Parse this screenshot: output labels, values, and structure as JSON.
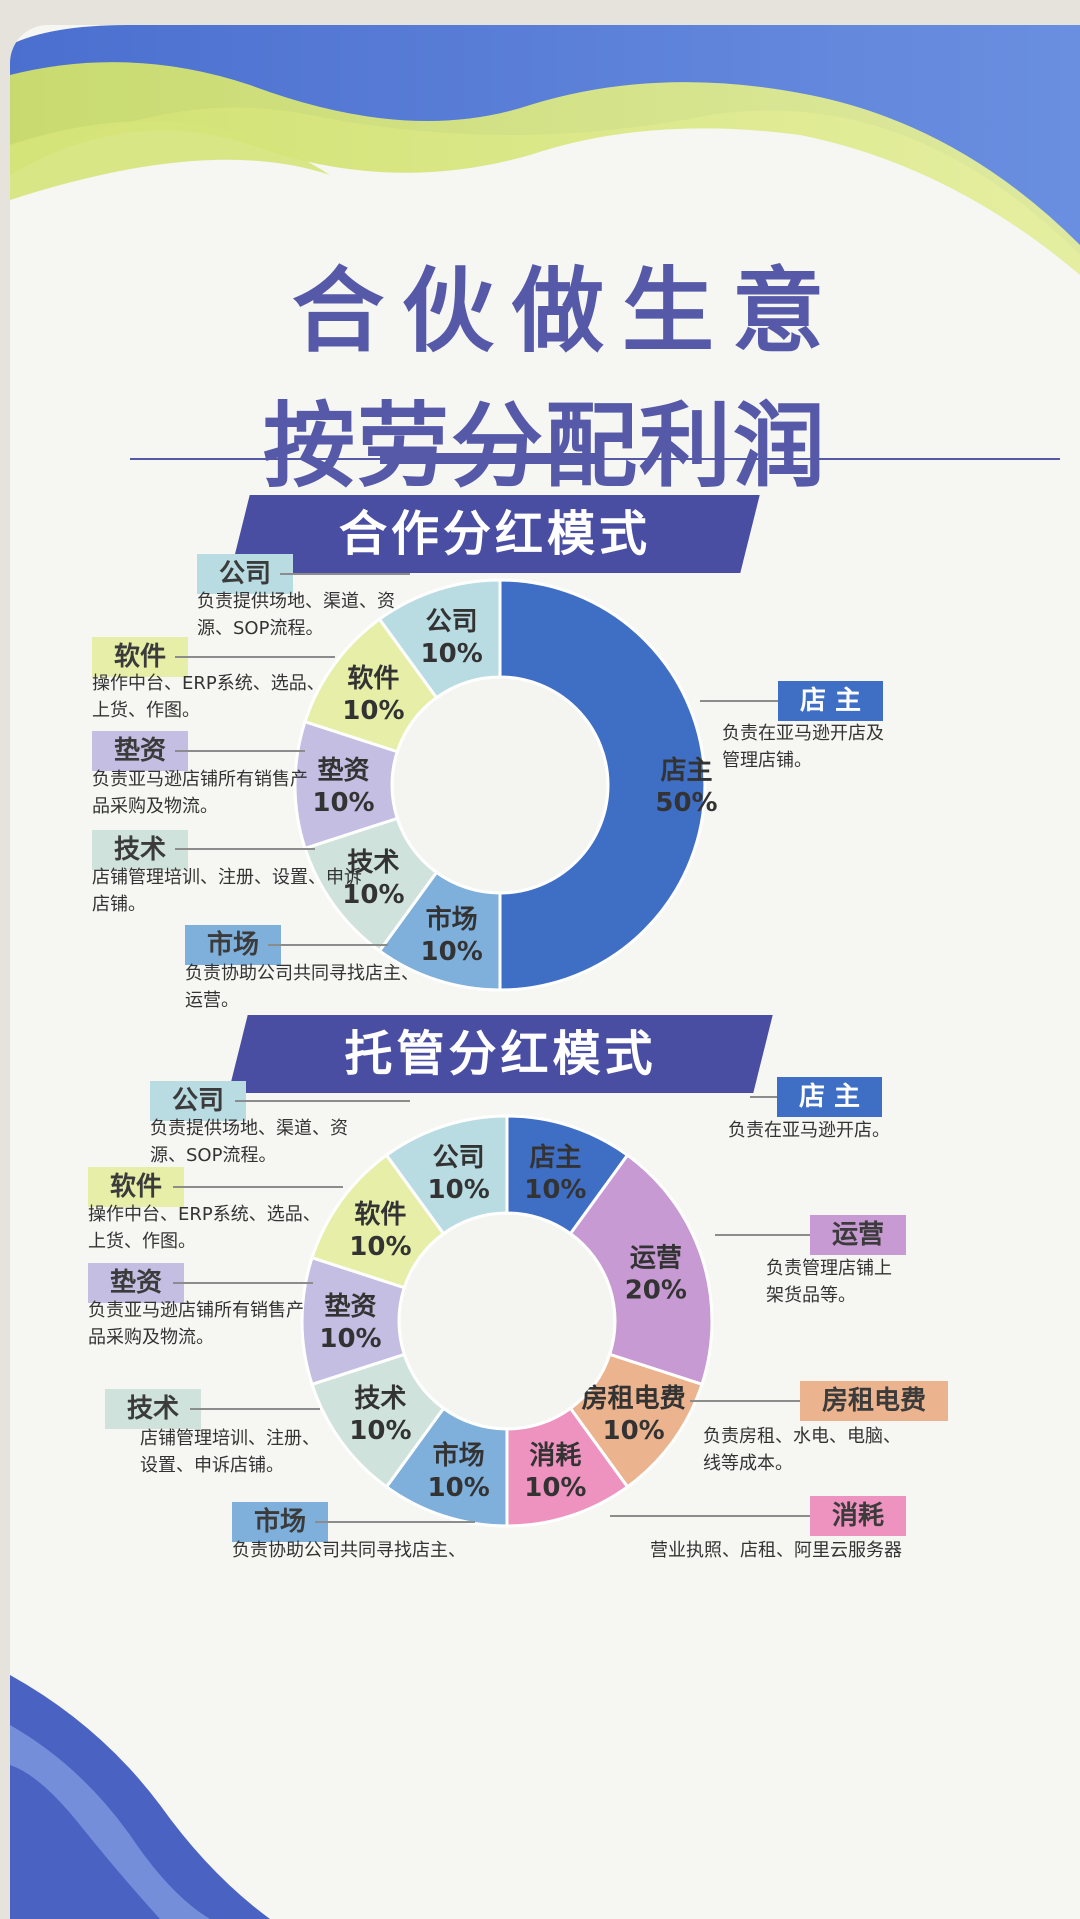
{
  "title_line1": "合伙做生意",
  "title_line2": "按劳分配利润",
  "colors": {
    "owner": "#3f6fc5",
    "company": "#b9dbe2",
    "software": "#e7eea8",
    "funding": "#c4bee2",
    "tech": "#cfe3dc",
    "market": "#7fb0dc",
    "operations": "#c79ad3",
    "rent": "#ebb48f",
    "consumables": "#ee93bf",
    "banner": "#4a4ea3",
    "title": "#5559a8"
  },
  "section1": {
    "banner": "合作分红模式",
    "chart_data": {
      "type": "pie",
      "slices": [
        {
          "label": "店主",
          "value": 50,
          "pct": "50%"
        },
        {
          "label": "市场",
          "value": 10,
          "pct": "10%"
        },
        {
          "label": "技术",
          "value": 10,
          "pct": "10%"
        },
        {
          "label": "垫资",
          "value": 10,
          "pct": "10%"
        },
        {
          "label": "软件",
          "value": 10,
          "pct": "10%"
        },
        {
          "label": "公司",
          "value": 10,
          "pct": "10%"
        }
      ]
    },
    "tags": [
      {
        "tag": "公司",
        "desc": [
          "负责提供场地、渠道、资",
          "源、SOP流程。"
        ]
      },
      {
        "tag": "软件",
        "desc": [
          "操作中台、ERP系统、选品、",
          "上货、作图。"
        ]
      },
      {
        "tag": "垫资",
        "desc": [
          "负责亚马逊店铺所有销售产",
          "品采购及物流。"
        ]
      },
      {
        "tag": "技术",
        "desc": [
          "店铺管理培训、注册、设置、申诉",
          "店铺。"
        ]
      },
      {
        "tag": "市场",
        "desc": [
          "负责协助公司共同寻找店主、",
          "运营。"
        ]
      },
      {
        "tag": "店 主",
        "desc": [
          "负责在亚马逊开店及",
          "管理店铺。"
        ]
      }
    ]
  },
  "section2": {
    "banner": "托管分红模式",
    "chart_data": {
      "type": "pie",
      "slices": [
        {
          "label": "店主",
          "value": 10,
          "pct": "10%"
        },
        {
          "label": "运营",
          "value": 20,
          "pct": "20%"
        },
        {
          "label": "房租电费",
          "value": 10,
          "pct": "10%"
        },
        {
          "label": "消耗",
          "value": 10,
          "pct": "10%"
        },
        {
          "label": "市场",
          "value": 10,
          "pct": "10%"
        },
        {
          "label": "技术",
          "value": 10,
          "pct": "10%"
        },
        {
          "label": "垫资",
          "value": 10,
          "pct": "10%"
        },
        {
          "label": "软件",
          "value": 10,
          "pct": "10%"
        },
        {
          "label": "公司",
          "value": 10,
          "pct": "10%"
        }
      ]
    },
    "tags": [
      {
        "tag": "公司",
        "desc": [
          "负责提供场地、渠道、资",
          "源、SOP流程。"
        ]
      },
      {
        "tag": "软件",
        "desc": [
          "操作中台、ERP系统、选品、",
          "上货、作图。"
        ]
      },
      {
        "tag": "垫资",
        "desc": [
          "负责亚马逊店铺所有销售产",
          "品采购及物流。"
        ]
      },
      {
        "tag": "技术",
        "desc": [
          "店铺管理培训、注册、",
          "设置、申诉店铺。"
        ]
      },
      {
        "tag": "市场",
        "desc": [
          "负责协助公司共同寻找店主、"
        ]
      },
      {
        "tag": "店 主",
        "desc": [
          "负责在亚马逊开店。"
        ]
      },
      {
        "tag": "运营",
        "desc": [
          "负责管理店铺上",
          "架货品等。"
        ]
      },
      {
        "tag": "房租电费",
        "desc": [
          "负责房租、水电、电脑、",
          "线等成本。"
        ]
      },
      {
        "tag": "消耗",
        "desc": [
          "营业执照、店租、阿里云服务器"
        ]
      }
    ]
  }
}
